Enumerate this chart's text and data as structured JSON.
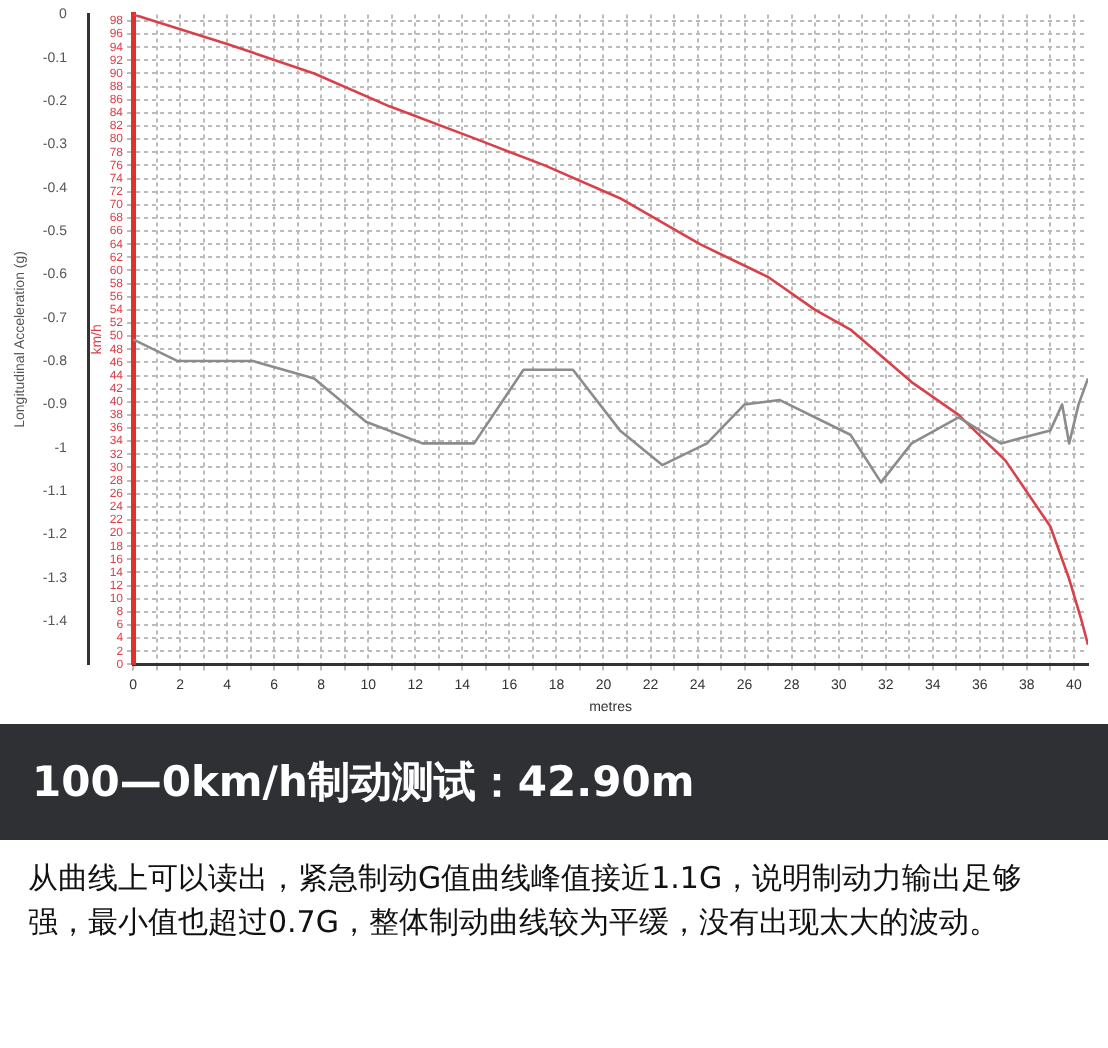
{
  "chart_data": {
    "type": "line",
    "title": "100—0km/h制动测试：42.90m",
    "xlabel": "metres",
    "ylabel": "Longitudinal Acceleration (g)",
    "y2label": "km/h",
    "annotations": [
      "从曲线上可以读出，紧急制动G值曲线峰值接近1.1G，说明制动力输出足够强，最小值也超过0.7G，整体制动曲线较为平缓，没有出现太大的波动。"
    ],
    "xlim": [
      0,
      40.6
    ],
    "xticks": [
      0,
      {
        "value": 1,
        "label": null
      },
      2,
      {
        "value": 3,
        "label": null
      },
      4,
      {
        "value": 5,
        "label": null
      },
      6,
      {
        "value": 7,
        "label": null
      },
      8,
      {
        "value": 9,
        "label": null
      },
      10,
      {
        "value": 11,
        "label": null
      },
      12,
      {
        "value": 13,
        "label": null
      },
      14,
      {
        "value": 15,
        "label": null
      },
      16,
      {
        "value": 17,
        "label": null
      },
      18,
      {
        "value": 19,
        "label": null
      },
      20,
      {
        "value": 21,
        "label": null
      },
      22,
      {
        "value": 23,
        "label": null
      },
      24,
      {
        "value": 25,
        "label": null
      },
      26,
      {
        "value": 27,
        "label": null
      },
      28,
      {
        "value": 29,
        "label": null
      },
      30,
      {
        "value": 31,
        "label": null
      },
      32,
      {
        "value": 33,
        "label": null
      },
      34,
      {
        "value": 35,
        "label": null
      },
      36,
      {
        "value": 37,
        "label": null
      },
      38,
      {
        "value": 39,
        "label": null
      },
      40
    ],
    "ylim": [
      -1.5,
      0
    ],
    "yticks": [
      0,
      -0.1,
      -0.2,
      -0.3,
      -0.4,
      -0.5,
      -0.6,
      -0.7,
      -0.8,
      -0.9,
      -1,
      -1.1,
      -1.2,
      -1.3,
      -1.4
    ],
    "y2lim": [
      0,
      99
    ],
    "y2ticks": [
      0,
      2,
      4,
      6,
      8,
      10,
      12,
      14,
      16,
      18,
      20,
      22,
      24,
      26,
      28,
      30,
      32,
      34,
      36,
      38,
      40,
      42,
      44,
      46,
      48,
      50,
      52,
      54,
      56,
      58,
      60,
      62,
      64,
      66,
      68,
      70,
      72,
      74,
      76,
      78,
      80,
      82,
      84,
      86,
      88,
      90,
      92,
      94,
      96,
      98
    ],
    "grid": true,
    "legend": false,
    "marker": "none",
    "line_style": "solid",
    "series": [
      {
        "color": "#8c8c8c",
        "x": [
          0,
          1.9,
          5.1,
          7.7,
          9.9,
          12.3,
          14.5,
          16.6,
          18.7,
          20.7,
          22.5,
          24.4,
          26.0,
          27.5,
          30.5,
          31.8,
          33.1,
          35.1,
          36.9,
          39.0,
          39.5,
          39.8,
          40.2,
          40.6
        ],
        "values": [
          -0.75,
          -0.8,
          -0.8,
          -0.84,
          -0.94,
          -0.99,
          -0.99,
          -0.82,
          -0.82,
          -0.96,
          -1.04,
          -0.99,
          -0.9,
          -0.89,
          -0.97,
          -1.08,
          -0.99,
          -0.93,
          -0.99,
          -0.96,
          -0.9,
          -0.99,
          -0.9,
          -0.84
        ]
      },
      {
        "color": "#d9404a",
        "axis": "y2",
        "x": [
          0,
          4.0,
          7.7,
          10.9,
          14.6,
          17.5,
          20.7,
          24.1,
          27.0,
          29.0,
          30.5,
          33.1,
          35.1,
          37.1,
          39.0,
          39.8,
          40.3,
          40.6
        ],
        "values": [
          99,
          94.5,
          90,
          85,
          80,
          76,
          71,
          64,
          59,
          54,
          51,
          43,
          38,
          31,
          21,
          13,
          7,
          3
        ]
      }
    ]
  }
}
